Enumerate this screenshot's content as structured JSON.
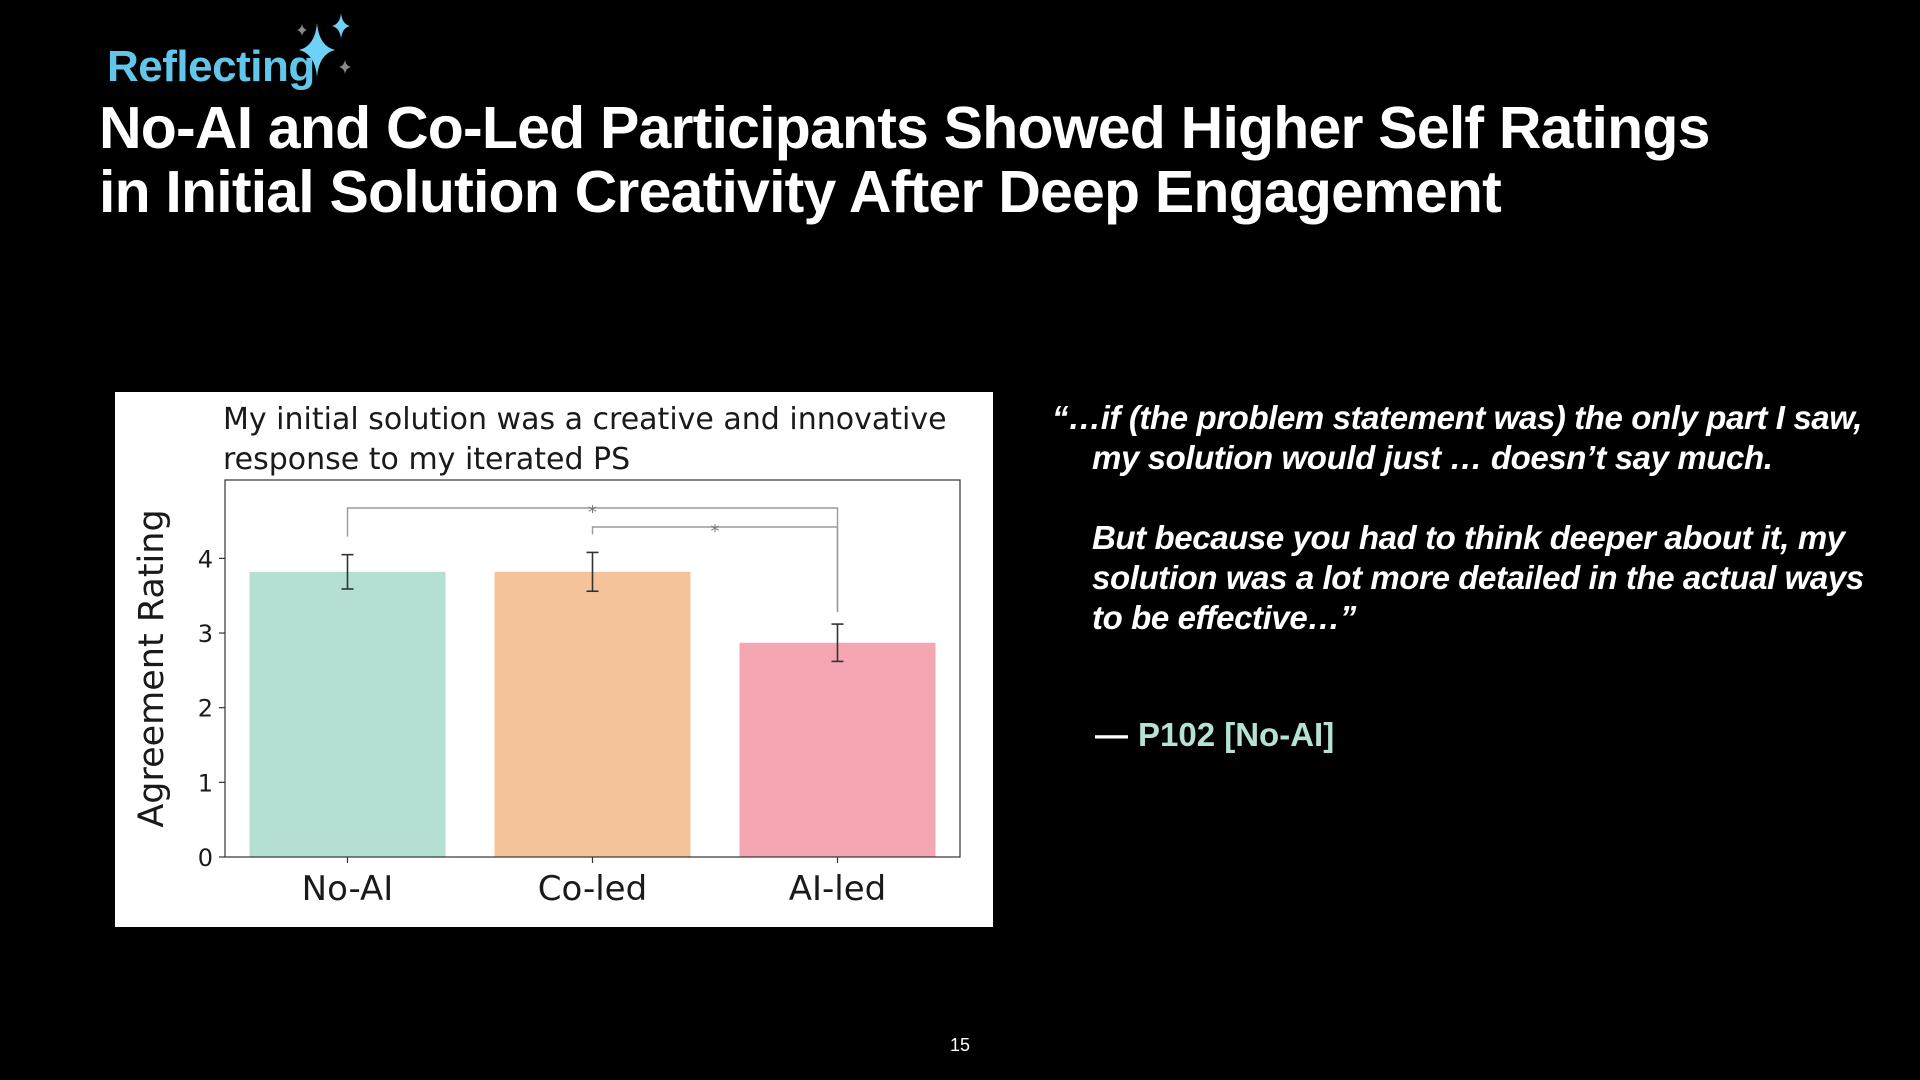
{
  "slide": {
    "section_tag": "Reflecting",
    "title_lines": [
      "No-AI and Co-Led Participants Showed Higher Self Ratings",
      "in Initial Solution Creativity After Deep Engagement"
    ],
    "quote": {
      "paragraphs": [
        "“…if (the problem statement was) the only part I saw, my solution would just … doesn’t say much.",
        "But because you had to think deeper about it, my solution was a lot more detailed in the actual ways to be effective…”"
      ],
      "dash": "—",
      "attribution": "P102 [No-AI]"
    },
    "page_number": "15",
    "icons": {
      "sparkle": "sparkle-icon"
    },
    "colors": {
      "accent": "#62c6ea",
      "attribution": "#b6e2d3",
      "background": "#000000"
    }
  },
  "chart_data": {
    "type": "bar",
    "title_lines": [
      "My initial solution was a creative and innovative",
      "response to my iterated PS"
    ],
    "xlabel": "",
    "ylabel": "Agreement Rating",
    "categories": [
      "No-AI",
      "Co-led",
      "AI-led"
    ],
    "values": [
      3.82,
      3.82,
      2.87
    ],
    "errors": [
      0.23,
      0.26,
      0.25
    ],
    "colors": [
      "#b5dfd3",
      "#f5c39a",
      "#f4a6b3"
    ],
    "ylim": [
      0,
      5.05
    ],
    "yticks": [
      0,
      1,
      2,
      3,
      4
    ],
    "grid": false,
    "significance": [
      {
        "from": 0,
        "to": 2,
        "label": "*"
      },
      {
        "from": 1,
        "to": 2,
        "label": "*"
      }
    ]
  }
}
